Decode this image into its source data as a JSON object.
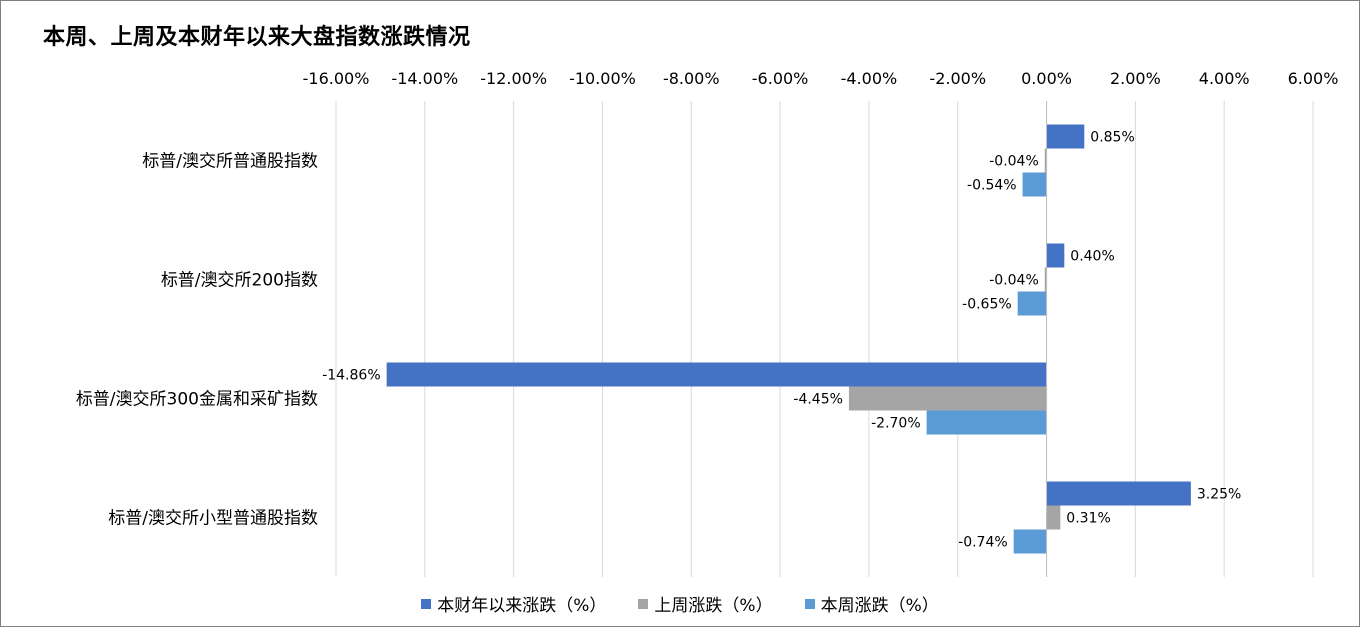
{
  "chart_data": {
    "type": "bar",
    "orientation": "horizontal",
    "title": "本周、上周及本财年以来大盘指数涨跌情况",
    "categories": [
      "标普/澳交所普通股指数",
      "标普/澳交所200指数",
      "标普/澳交所300金属和采矿指数",
      "标普/澳交所小型普通股指数"
    ],
    "series": [
      {
        "name": "本财年以来涨跌（%）",
        "color": "#4472c4",
        "values": [
          0.85,
          0.4,
          -14.86,
          3.25
        ],
        "labels": [
          "0.85%",
          "0.40%",
          "-14.86%",
          "3.25%"
        ]
      },
      {
        "name": "上周涨跌（%）",
        "color": "#a5a5a5",
        "values": [
          -0.04,
          -0.04,
          -4.45,
          0.31
        ],
        "labels": [
          "-0.04%",
          "-0.04%",
          "-4.45%",
          "0.31%"
        ]
      },
      {
        "name": "本周涨跌（%）",
        "color": "#5b9bd5",
        "values": [
          -0.54,
          -0.65,
          -2.7,
          -0.74
        ],
        "labels": [
          "-0.54%",
          "-0.65%",
          "-2.70%",
          "-0.74%"
        ]
      }
    ],
    "xlim": [
      -16,
      6
    ],
    "xticks": [
      -16,
      -14,
      -12,
      -10,
      -8,
      -6,
      -4,
      -2,
      0,
      2,
      4,
      6
    ],
    "xtick_labels": [
      "-16.00%",
      "-14.00%",
      "-12.00%",
      "-10.00%",
      "-8.00%",
      "-6.00%",
      "-4.00%",
      "-2.00%",
      "0.00%",
      "2.00%",
      "4.00%",
      "6.00%"
    ],
    "axis_position": "top",
    "grid": true,
    "legend": "bottom"
  }
}
